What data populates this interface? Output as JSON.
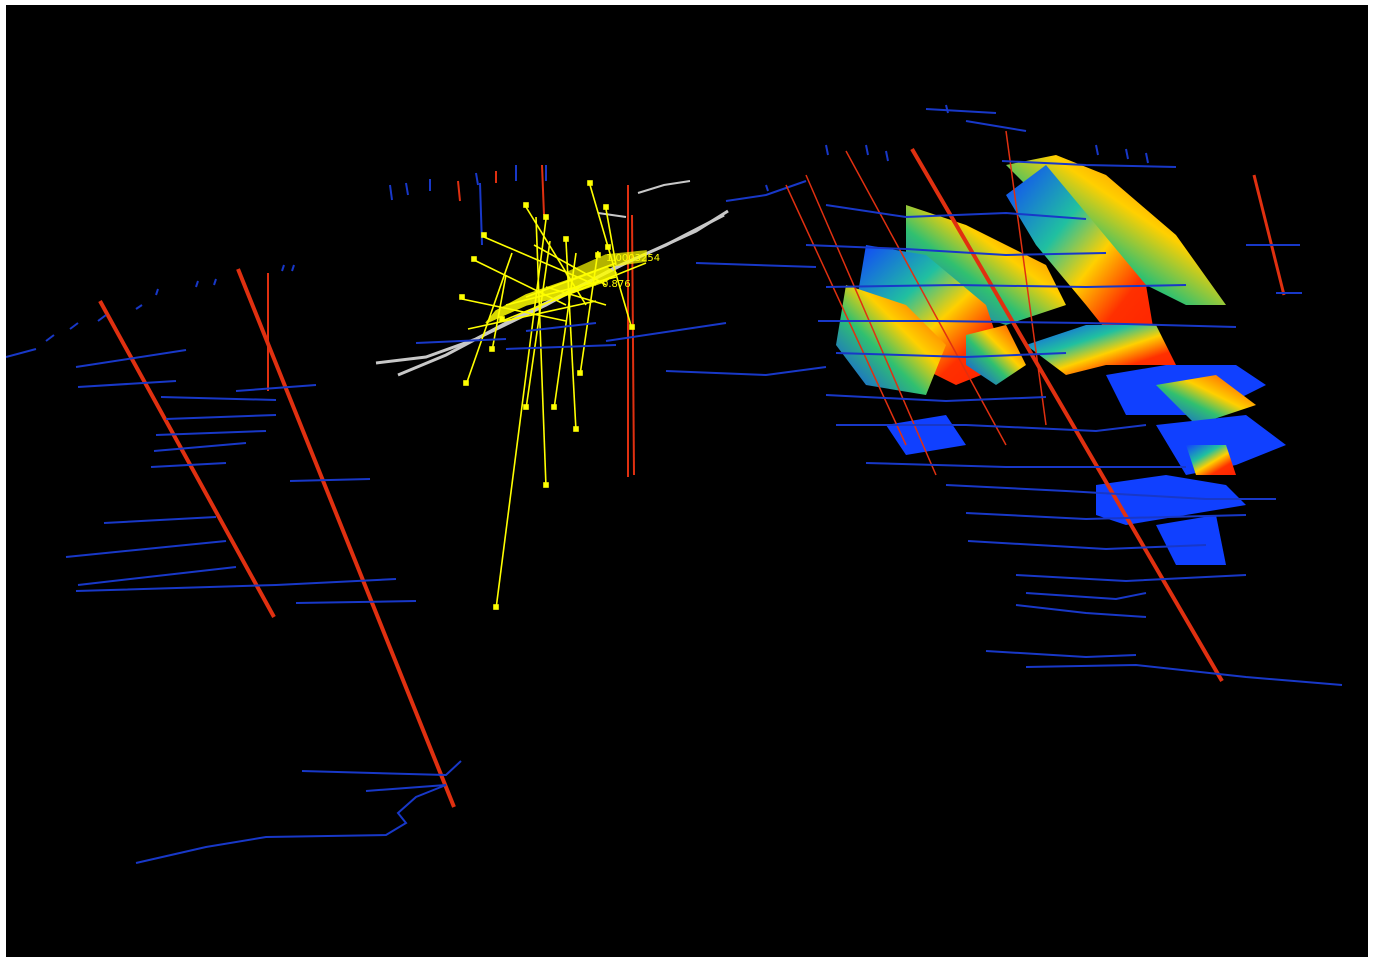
{
  "viewport": {
    "background": "#000000",
    "description_labels": {
      "marker_labels": [
        "1.0003254",
        "0.876"
      ]
    }
  },
  "colors": {
    "drillhole": "#e03010",
    "survey_line": "#1838c8",
    "point_cluster": "#ffff00",
    "tunnel": "#c8c8c8",
    "surface_high": "#ff3000",
    "surface_mid": "#ffd000",
    "surface_low": "#1040ff"
  }
}
